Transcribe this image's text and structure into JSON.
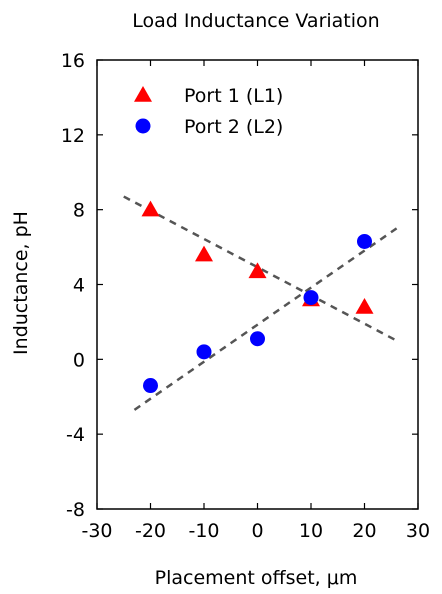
{
  "chart_data": {
    "type": "scatter",
    "title": "Load Inductance Variation",
    "xlabel": "Placement offset, μm",
    "ylabel": "Inductance, pH",
    "xlim": [
      -30,
      30
    ],
    "ylim": [
      -8,
      16
    ],
    "xticks": [
      -30,
      -20,
      -10,
      0,
      10,
      20,
      30
    ],
    "yticks": [
      -8,
      -4,
      0,
      4,
      8,
      12,
      16
    ],
    "xtick_labels": [
      "-30",
      "-20",
      "-10",
      "0",
      "10",
      "20",
      "30"
    ],
    "ytick_labels": [
      "-8",
      "-4",
      "0",
      "4",
      "8",
      "12",
      "16"
    ],
    "grid": false,
    "legend_position": "top-left",
    "series": [
      {
        "name": "Port 1 (L1)",
        "marker": "triangle",
        "color": "#ff0000",
        "x": [
          -20,
          -10,
          0,
          10,
          20
        ],
        "y": [
          8.0,
          5.6,
          4.7,
          3.2,
          2.8
        ],
        "fit": {
          "x": [
            -25,
            26
          ],
          "y": [
            8.7,
            1.0
          ]
        }
      },
      {
        "name": "Port 2 (L2)",
        "marker": "circle",
        "color": "#0000ff",
        "x": [
          -20,
          -10,
          0,
          10,
          20
        ],
        "y": [
          -1.4,
          0.4,
          1.1,
          3.3,
          6.3
        ],
        "fit": {
          "x": [
            -23,
            26
          ],
          "y": [
            -2.7,
            7.0
          ]
        }
      }
    ],
    "fit_line_color": "#555555"
  }
}
